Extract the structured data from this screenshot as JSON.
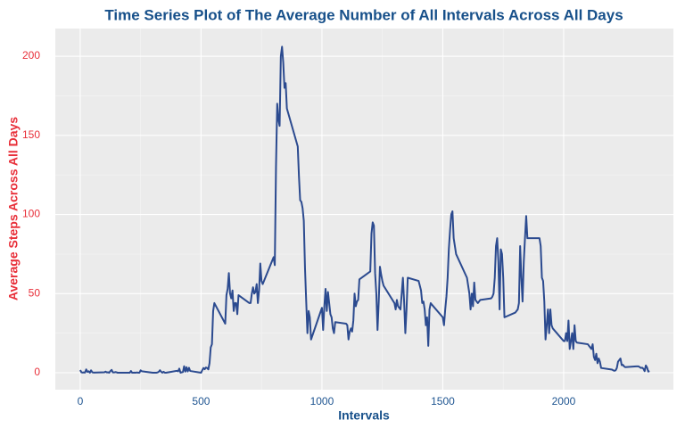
{
  "chart_data": {
    "type": "line",
    "title": "Time Series Plot of The Average Number of All Intervals Across All Days",
    "x_label": "Intervals",
    "y_label": "Average Steps Across All Days",
    "color": "#2b4a8f",
    "grid": true,
    "xlim": [
      -103,
      2454
    ],
    "ylim": [
      -10.7,
      217.5
    ],
    "xticks": [
      0,
      500,
      1000,
      1500,
      2000
    ],
    "yticks": [
      0,
      50,
      100,
      150,
      200
    ],
    "x": [
      0,
      5,
      10,
      15,
      20,
      25,
      30,
      35,
      40,
      45,
      50,
      55,
      100,
      105,
      110,
      115,
      120,
      125,
      130,
      135,
      140,
      145,
      150,
      155,
      200,
      205,
      210,
      215,
      220,
      225,
      230,
      235,
      240,
      245,
      250,
      255,
      300,
      305,
      310,
      315,
      320,
      325,
      330,
      335,
      340,
      345,
      350,
      355,
      400,
      405,
      410,
      415,
      420,
      425,
      430,
      435,
      440,
      445,
      450,
      455,
      500,
      505,
      510,
      515,
      520,
      525,
      530,
      535,
      540,
      545,
      550,
      555,
      600,
      605,
      610,
      615,
      620,
      625,
      630,
      635,
      640,
      645,
      650,
      655,
      700,
      705,
      710,
      715,
      720,
      725,
      730,
      735,
      740,
      745,
      750,
      755,
      800,
      805,
      810,
      815,
      820,
      825,
      830,
      835,
      840,
      845,
      850,
      855,
      900,
      905,
      910,
      915,
      920,
      925,
      930,
      935,
      940,
      945,
      950,
      955,
      1000,
      1005,
      1010,
      1015,
      1020,
      1025,
      1030,
      1035,
      1040,
      1045,
      1050,
      1055,
      1100,
      1105,
      1110,
      1115,
      1120,
      1125,
      1130,
      1135,
      1140,
      1145,
      1150,
      1155,
      1200,
      1205,
      1210,
      1215,
      1220,
      1225,
      1230,
      1235,
      1240,
      1245,
      1250,
      1255,
      1300,
      1305,
      1310,
      1315,
      1320,
      1325,
      1330,
      1335,
      1340,
      1345,
      1350,
      1355,
      1400,
      1405,
      1410,
      1415,
      1420,
      1425,
      1430,
      1435,
      1440,
      1445,
      1450,
      1455,
      1500,
      1505,
      1510,
      1515,
      1520,
      1525,
      1530,
      1535,
      1540,
      1545,
      1550,
      1555,
      1600,
      1605,
      1610,
      1615,
      1620,
      1625,
      1630,
      1635,
      1640,
      1645,
      1650,
      1655,
      1700,
      1705,
      1710,
      1715,
      1720,
      1725,
      1730,
      1735,
      1740,
      1745,
      1750,
      1755,
      1800,
      1805,
      1810,
      1815,
      1820,
      1825,
      1830,
      1835,
      1840,
      1845,
      1850,
      1855,
      1900,
      1905,
      1910,
      1915,
      1920,
      1925,
      1930,
      1935,
      1940,
      1945,
      1950,
      1955,
      2000,
      2005,
      2010,
      2015,
      2020,
      2025,
      2030,
      2035,
      2040,
      2045,
      2050,
      2055,
      2100,
      2105,
      2110,
      2115,
      2120,
      2125,
      2130,
      2135,
      2140,
      2145,
      2150,
      2155,
      2200,
      2205,
      2210,
      2215,
      2220,
      2225,
      2230,
      2235,
      2240,
      2245,
      2250,
      2255,
      2300,
      2305,
      2310,
      2315,
      2320,
      2325,
      2330,
      2335,
      2340,
      2345,
      2350,
      2355
    ],
    "values": [
      1.7,
      0.3,
      0.1,
      0.2,
      0.1,
      2.1,
      0.5,
      0.9,
      0,
      1.5,
      0.3,
      0.1,
      0.3,
      0.7,
      0.2,
      0.3,
      0,
      1.1,
      1.8,
      0.2,
      0.2,
      0.4,
      0.3,
      0,
      0,
      0,
      1.1,
      0,
      0,
      0.1,
      0,
      0.2,
      0,
      0,
      1.5,
      0.9,
      0,
      0,
      0,
      0,
      0.2,
      0.6,
      1.6,
      0.6,
      0,
      0.6,
      0,
      0,
      1.2,
      0.9,
      2.6,
      0,
      0.3,
      0.4,
      4.1,
      0.7,
      3.5,
      0.8,
      3.1,
      1.1,
      0,
      1.6,
      3,
      2.2,
      3.3,
      3,
      2.1,
      6,
      16,
      18,
      39,
      44,
      31,
      49,
      53,
      63,
      50,
      47,
      52,
      39,
      44,
      44,
      37,
      49,
      44,
      44,
      50,
      54,
      50,
      51,
      56,
      44,
      52,
      69,
      58,
      56,
      73,
      68,
      130,
      170,
      160,
      156,
      200,
      206,
      196,
      180,
      183,
      167,
      143,
      124,
      109,
      108,
      104,
      96,
      66,
      45,
      25,
      39,
      35,
      21,
      41,
      27,
      42,
      53,
      39,
      51,
      44,
      37,
      35,
      28,
      25,
      32,
      31,
      30,
      21,
      26,
      28,
      26,
      33,
      50,
      42,
      45,
      46,
      59,
      64,
      88,
      95,
      93,
      63,
      50,
      27,
      45,
      67,
      62,
      58,
      55,
      44,
      40,
      46,
      42,
      41,
      40,
      50,
      60,
      45,
      25,
      40,
      60,
      58,
      55,
      52,
      44,
      45,
      40,
      30,
      35,
      17,
      40,
      44,
      43,
      35,
      30,
      40,
      48,
      60,
      78,
      90,
      100,
      102,
      85,
      80,
      75,
      60,
      55,
      50,
      40,
      50,
      42,
      57,
      46,
      45,
      44,
      45,
      46,
      47,
      48,
      50,
      60,
      80,
      85,
      70,
      40,
      78,
      75,
      60,
      35,
      38,
      39,
      40,
      44,
      80,
      60,
      45,
      70,
      85,
      99,
      85,
      85,
      85,
      80,
      60,
      58,
      45,
      21,
      30,
      40,
      25,
      40,
      30,
      28,
      20,
      20,
      25,
      20,
      33,
      15,
      20,
      25,
      15,
      30,
      20,
      19,
      18,
      17,
      16,
      15,
      18,
      10,
      8,
      12,
      6,
      9,
      7,
      3,
      2,
      1.5,
      1.2,
      1.5,
      3,
      7,
      8,
      9,
      4.8,
      5,
      4,
      3.5,
      4,
      4,
      4,
      3.5,
      3,
      3.2,
      2.5,
      1,
      4.6,
      3.3,
      0.7,
      1.1
    ]
  }
}
